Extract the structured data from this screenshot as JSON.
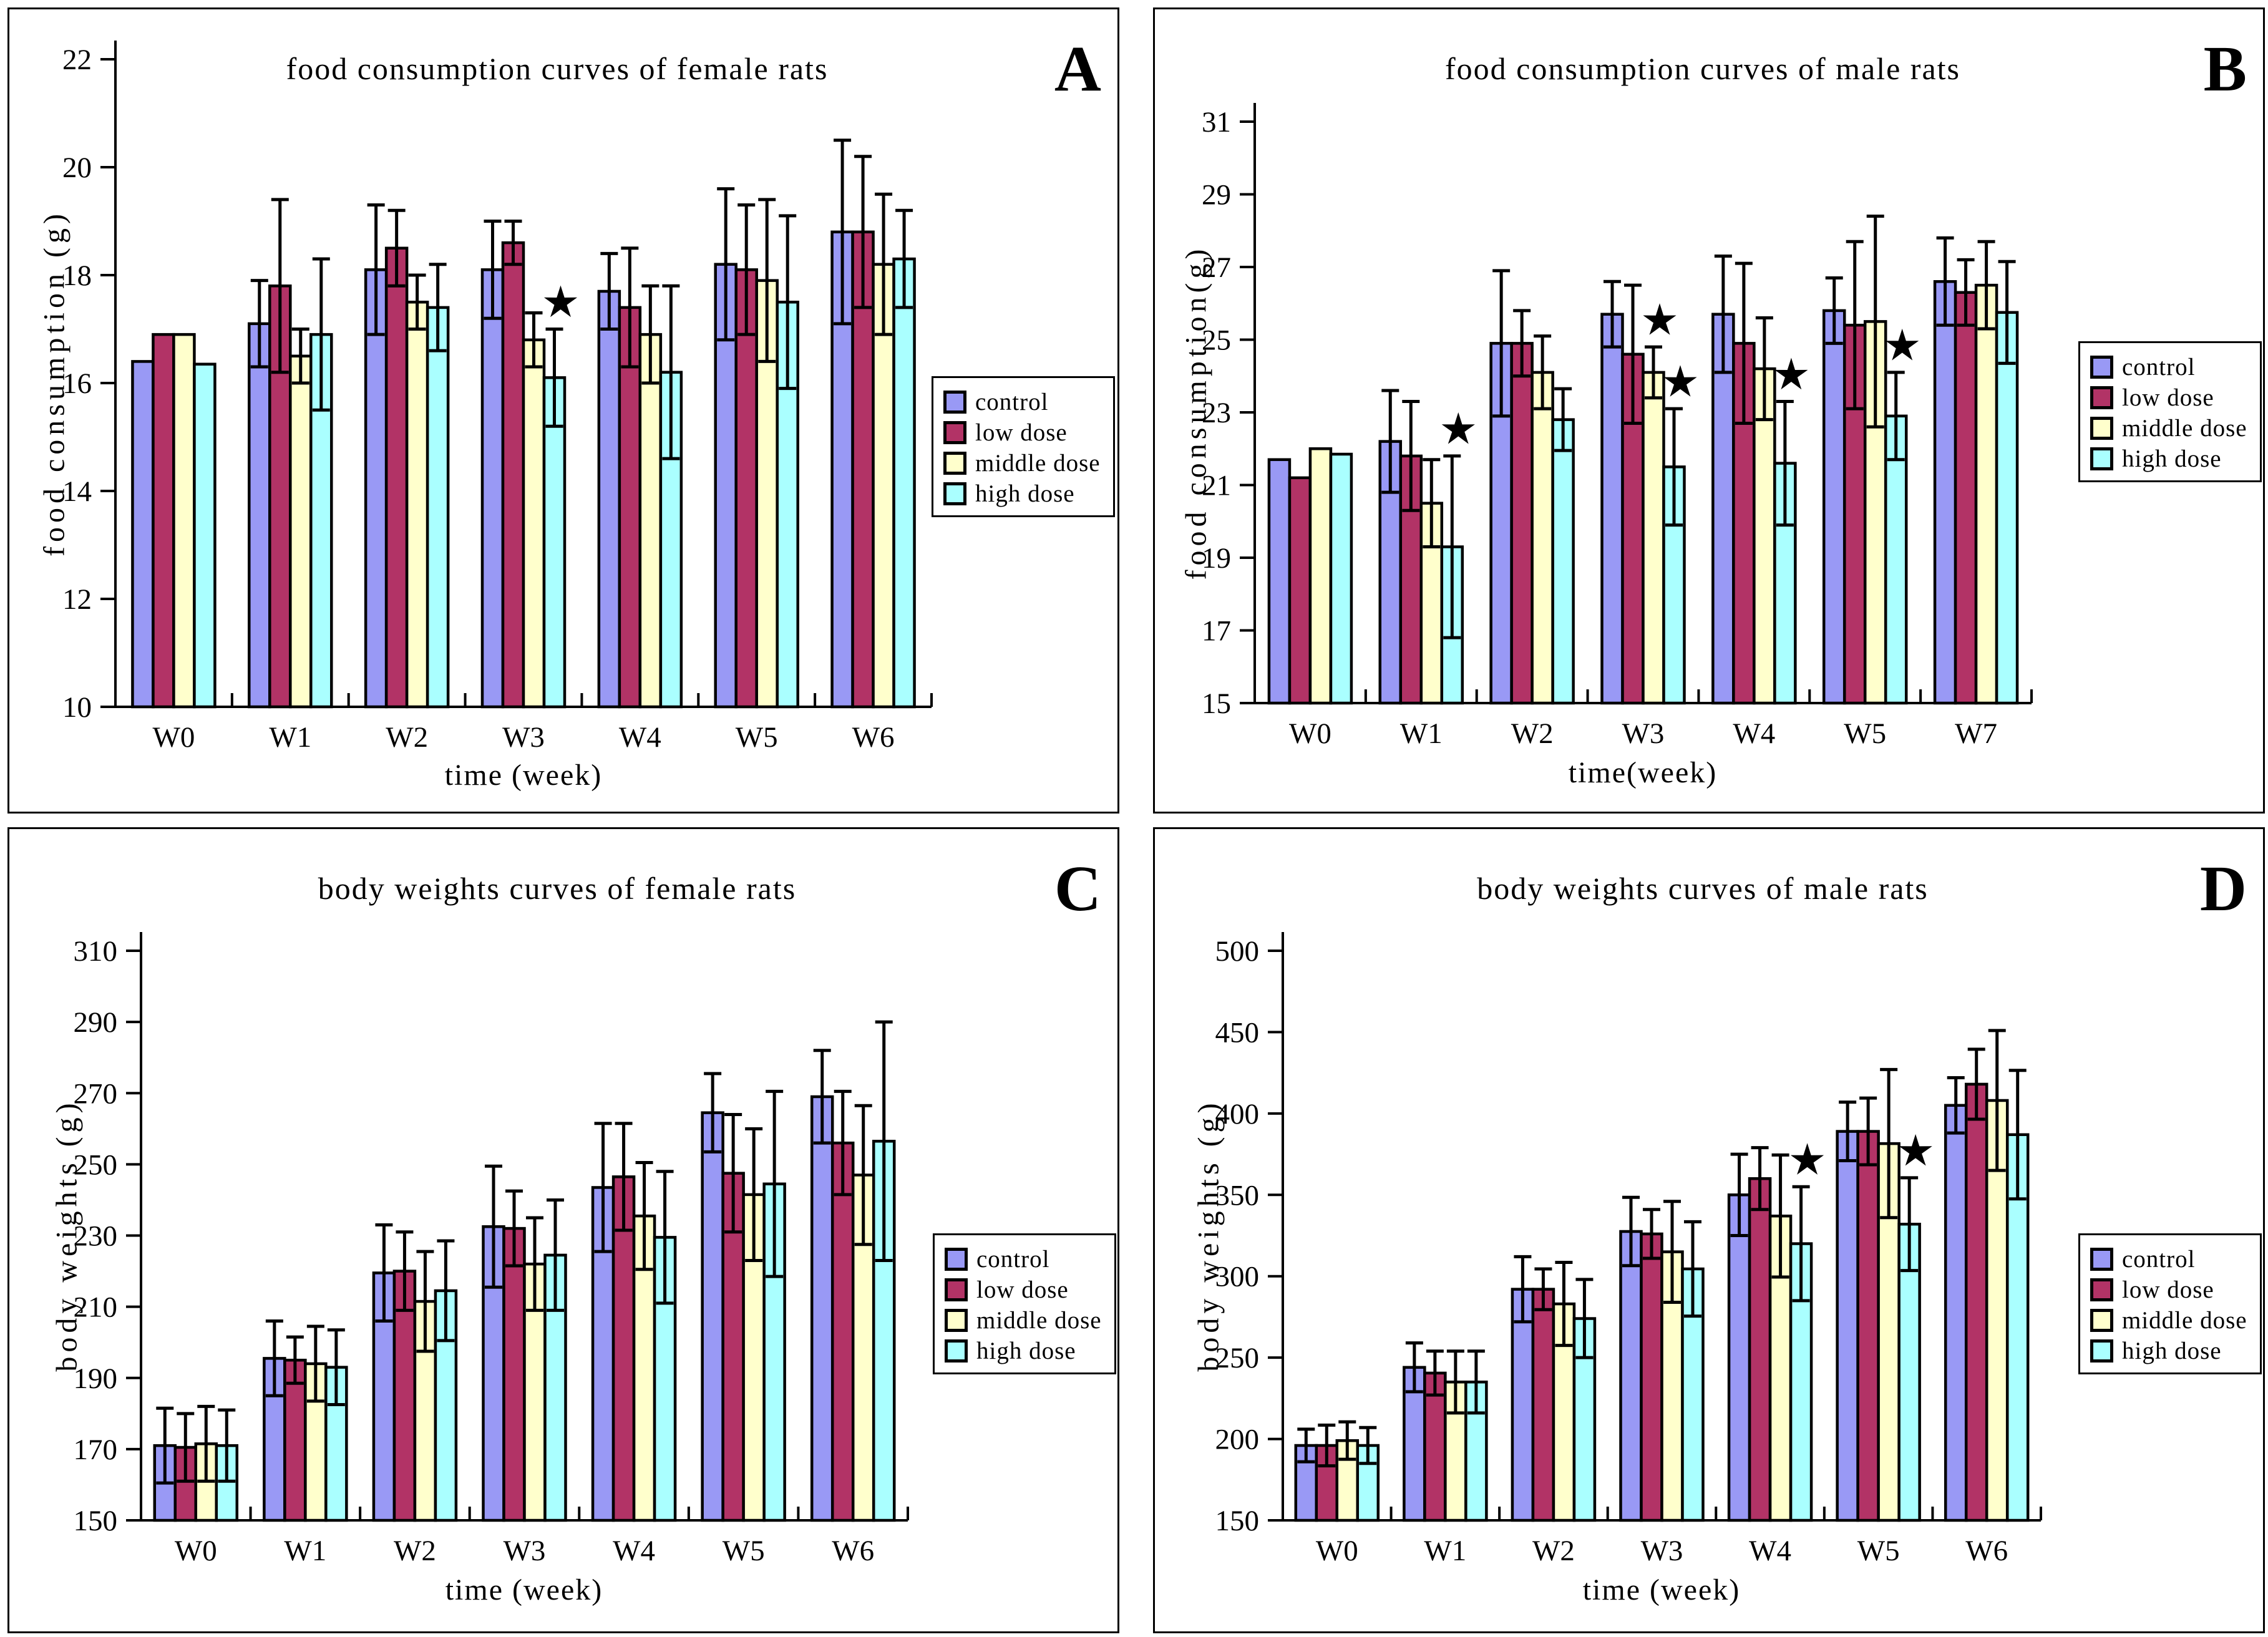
{
  "chart_data": [
    {
      "panel_label": "A",
      "type": "bar",
      "title": "food consumption curves of female rats",
      "xlabel": "time (week)",
      "ylabel": "food consumption (g)",
      "categories": [
        "W0",
        "W1",
        "W2",
        "W3",
        "W4",
        "W5",
        "W6"
      ],
      "ylim": [
        10,
        22
      ],
      "ytick_step": 2,
      "legend_position": "right",
      "grid": false,
      "series": [
        {
          "name": "control",
          "color": "#9999F5",
          "values": [
            16.4,
            17.1,
            18.1,
            18.1,
            17.7,
            18.2,
            18.8
          ],
          "errors": [
            0,
            0.8,
            1.2,
            0.9,
            0.7,
            1.4,
            1.7
          ]
        },
        {
          "name": "low dose",
          "color": "#B23366",
          "values": [
            16.9,
            17.8,
            18.5,
            18.6,
            17.4,
            18.1,
            18.8
          ],
          "errors": [
            0,
            1.6,
            0.7,
            0.4,
            1.1,
            1.2,
            1.4
          ]
        },
        {
          "name": "middle dose",
          "color": "#FFFFCC",
          "values": [
            16.9,
            16.5,
            17.5,
            16.8,
            16.9,
            17.9,
            18.2
          ],
          "errors": [
            0,
            0.5,
            0.5,
            0.5,
            0.9,
            1.5,
            1.3
          ]
        },
        {
          "name": "high dose",
          "color": "#AAFFFF",
          "values": [
            16.35,
            16.9,
            17.4,
            16.1,
            16.2,
            17.5,
            18.3
          ],
          "errors": [
            0,
            1.4,
            0.8,
            0.9,
            1.6,
            1.6,
            0.9
          ]
        }
      ],
      "stars": [
        {
          "category": "W3",
          "series": "high dose"
        }
      ]
    },
    {
      "panel_label": "B",
      "type": "bar",
      "title": "food consumption curves of male rats",
      "xlabel": "time(week)",
      "ylabel": "food consumption(g)",
      "categories": [
        "W0",
        "W1",
        "W2",
        "W3",
        "W4",
        "W5",
        "W7"
      ],
      "ylim": [
        15,
        31
      ],
      "ytick_step": 2,
      "legend_position": "right",
      "grid": false,
      "series": [
        {
          "name": "control",
          "color": "#9999F5",
          "values": [
            21.7,
            22.2,
            24.9,
            25.7,
            25.7,
            25.8,
            26.6
          ],
          "errors": [
            0,
            1.4,
            2.0,
            0.9,
            1.6,
            0.9,
            1.2
          ]
        },
        {
          "name": "low dose",
          "color": "#B23366",
          "values": [
            21.2,
            21.8,
            24.9,
            24.6,
            24.9,
            25.4,
            26.3
          ],
          "errors": [
            0,
            1.5,
            0.9,
            1.9,
            2.2,
            2.3,
            0.9
          ]
        },
        {
          "name": "middle dose",
          "color": "#FFFFCC",
          "values": [
            22.0,
            20.5,
            24.1,
            24.1,
            24.2,
            25.5,
            26.5
          ],
          "errors": [
            0,
            1.2,
            1.0,
            0.7,
            1.4,
            2.9,
            1.2
          ]
        },
        {
          "name": "high dose",
          "color": "#AAFFFF",
          "values": [
            21.85,
            19.3,
            22.8,
            21.5,
            21.6,
            22.9,
            25.75
          ],
          "errors": [
            0,
            2.5,
            0.85,
            1.6,
            1.7,
            1.2,
            1.4
          ]
        }
      ],
      "stars": [
        {
          "category": "W1",
          "series": "high dose"
        },
        {
          "category": "W3",
          "series": "middle dose"
        },
        {
          "category": "W3",
          "series": "high dose"
        },
        {
          "category": "W4",
          "series": "high dose"
        },
        {
          "category": "W5",
          "series": "high dose"
        }
      ]
    },
    {
      "panel_label": "C",
      "type": "bar",
      "title": "body weights curves of female rats",
      "xlabel": "time (week)",
      "ylabel": "body weights (g)",
      "categories": [
        "W0",
        "W1",
        "W2",
        "W3",
        "W4",
        "W5",
        "W6"
      ],
      "ylim": [
        150,
        310
      ],
      "ytick_step": 20,
      "legend_position": "right",
      "grid": false,
      "series": [
        {
          "name": "control",
          "color": "#9999F5",
          "values": [
            171,
            195.5,
            219.5,
            232.5,
            243.5,
            264.5,
            269
          ],
          "errors": [
            10.5,
            10.5,
            13.5,
            17,
            18,
            11,
            13
          ]
        },
        {
          "name": "low dose",
          "color": "#B23366",
          "values": [
            170.5,
            195,
            220,
            232,
            246.5,
            247.5,
            256
          ],
          "errors": [
            9.5,
            6.5,
            11,
            10.5,
            15,
            16.5,
            14.5
          ]
        },
        {
          "name": "middle dose",
          "color": "#FFFFCC",
          "values": [
            171.5,
            194,
            211.5,
            222,
            235.5,
            241.5,
            247
          ],
          "errors": [
            10.5,
            10.5,
            14,
            13,
            15,
            18.5,
            19.5
          ]
        },
        {
          "name": "high dose",
          "color": "#AAFFFF",
          "values": [
            171,
            193,
            214.5,
            224.5,
            229.5,
            244.5,
            256.5
          ],
          "errors": [
            10,
            10.5,
            14,
            15.5,
            18.5,
            26,
            33.5
          ]
        }
      ],
      "stars": []
    },
    {
      "panel_label": "D",
      "type": "bar",
      "title": "body weights curves of male rats",
      "xlabel": "time (week)",
      "ylabel": "body weights (g)",
      "categories": [
        "W0",
        "W1",
        "W2",
        "W3",
        "W4",
        "W5",
        "W6"
      ],
      "ylim": [
        150,
        500
      ],
      "ytick_step": 50,
      "legend_position": "right",
      "grid": false,
      "series": [
        {
          "name": "control",
          "color": "#9999F5",
          "values": [
            196,
            244,
            292,
            327.5,
            350,
            389,
            405
          ],
          "errors": [
            10,
            15,
            20,
            21,
            25,
            18,
            17
          ]
        },
        {
          "name": "low dose",
          "color": "#B23366",
          "values": [
            196,
            240.5,
            292,
            326,
            360,
            389,
            418
          ],
          "errors": [
            12.5,
            13.5,
            12.5,
            15,
            19,
            20.5,
            21.5
          ]
        },
        {
          "name": "middle dose",
          "color": "#FFFFCC",
          "values": [
            199,
            235,
            283,
            315,
            337,
            381.5,
            408
          ],
          "errors": [
            11.5,
            19,
            25.5,
            31,
            37.5,
            45.5,
            43
          ]
        },
        {
          "name": "high dose",
          "color": "#AAFFFF",
          "values": [
            196,
            235,
            274,
            304.5,
            320,
            332,
            387
          ],
          "errors": [
            11,
            19,
            24,
            29,
            35,
            28.5,
            39.5
          ]
        }
      ],
      "stars": [
        {
          "category": "W4",
          "series": "high dose"
        },
        {
          "category": "W5",
          "series": "high dose"
        }
      ]
    }
  ],
  "style": {
    "bar_border_color": "#000000",
    "axis_color": "#000000",
    "star_symbol": "filled five-point star",
    "background": "#FFFFFF"
  }
}
